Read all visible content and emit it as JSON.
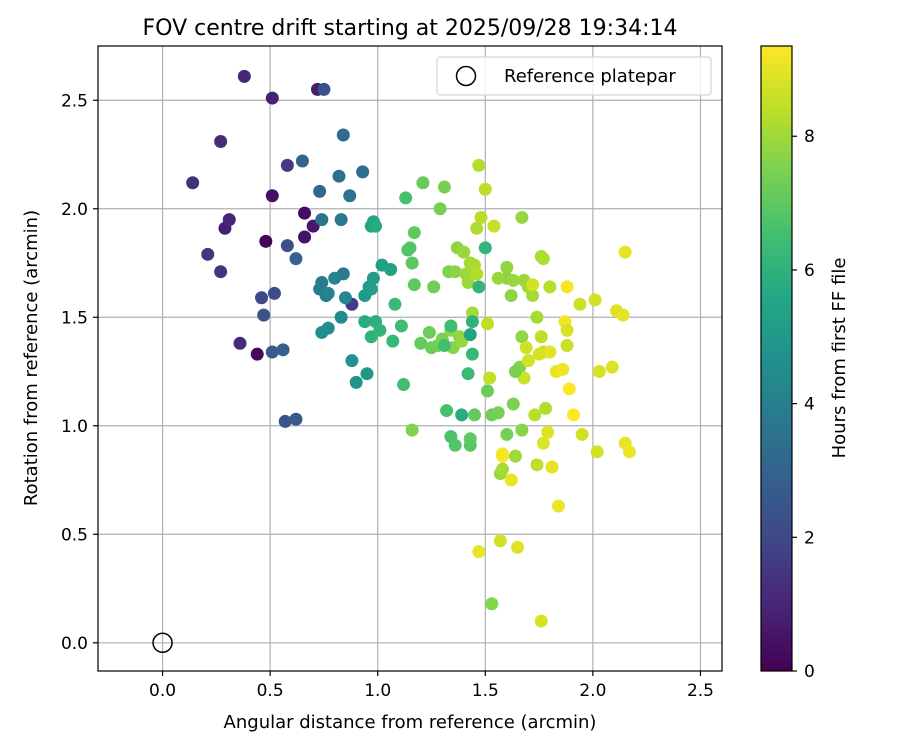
{
  "chart_data": {
    "type": "scatter",
    "title": "FOV centre drift starting at 2025/09/28 19:34:14",
    "xlabel": "Angular distance from reference (arcmin)",
    "ylabel": "Rotation from reference (arcmin)",
    "xlim": [
      -0.3,
      2.6
    ],
    "ylim": [
      -0.13,
      2.75
    ],
    "xticks": [
      0.0,
      0.5,
      1.0,
      1.5,
      2.0,
      2.5
    ],
    "xtick_labels": [
      "0.0",
      "0.5",
      "1.0",
      "1.5",
      "2.0",
      "2.5"
    ],
    "yticks": [
      0.0,
      0.5,
      1.0,
      1.5,
      2.0,
      2.5
    ],
    "ytick_labels": [
      "0.0",
      "0.5",
      "1.0",
      "1.5",
      "2.0",
      "2.5"
    ],
    "grid": true,
    "legend": {
      "position": "top-right",
      "label": "Reference platepar"
    },
    "reference_point": {
      "x": 0.0,
      "y": 0.0
    },
    "colorbar": {
      "label": "Hours from first FF file",
      "colormap": "viridis",
      "range": [
        0,
        9.35
      ],
      "ticks": [
        0,
        2,
        4,
        6,
        8
      ],
      "tick_labels": [
        "0",
        "2",
        "4",
        "6",
        "8"
      ]
    },
    "point_fields": [
      "x",
      "y",
      "hours"
    ],
    "points": [
      [
        0.48,
        1.85,
        0.05
      ],
      [
        0.44,
        1.33,
        0.2
      ],
      [
        0.66,
        1.98,
        0.3
      ],
      [
        0.51,
        2.06,
        0.4
      ],
      [
        0.66,
        1.87,
        0.5
      ],
      [
        0.7,
        1.92,
        0.6
      ],
      [
        0.72,
        2.55,
        0.7
      ],
      [
        0.29,
        1.91,
        0.8
      ],
      [
        0.51,
        2.51,
        0.9
      ],
      [
        0.31,
        1.95,
        1.0
      ],
      [
        0.38,
        2.61,
        1.05
      ],
      [
        0.36,
        1.38,
        1.15
      ],
      [
        0.27,
        2.31,
        1.2
      ],
      [
        0.14,
        2.12,
        1.3
      ],
      [
        0.27,
        1.71,
        1.4
      ],
      [
        0.21,
        1.79,
        1.5
      ],
      [
        0.58,
        2.2,
        1.6
      ],
      [
        0.88,
        1.56,
        1.7
      ],
      [
        0.46,
        1.59,
        2.0
      ],
      [
        0.52,
        1.61,
        2.1
      ],
      [
        0.58,
        1.83,
        2.2
      ],
      [
        0.75,
        2.55,
        2.3
      ],
      [
        0.47,
        1.51,
        2.4
      ],
      [
        0.57,
        1.02,
        2.5
      ],
      [
        0.62,
        1.03,
        2.6
      ],
      [
        0.51,
        1.34,
        2.7
      ],
      [
        0.56,
        1.35,
        2.8
      ],
      [
        0.62,
        1.77,
        2.9
      ],
      [
        0.65,
        2.22,
        3.0
      ],
      [
        0.73,
        2.08,
        3.1
      ],
      [
        0.84,
        2.34,
        3.2
      ],
      [
        0.93,
        2.17,
        3.3
      ],
      [
        0.82,
        2.15,
        3.4
      ],
      [
        0.87,
        2.06,
        3.5
      ],
      [
        0.74,
        1.95,
        3.6
      ],
      [
        0.83,
        1.95,
        3.7
      ],
      [
        0.84,
        1.7,
        3.8
      ],
      [
        0.74,
        1.66,
        3.85
      ],
      [
        0.73,
        1.63,
        3.9
      ],
      [
        0.76,
        1.6,
        4.0
      ],
      [
        0.77,
        1.61,
        4.1
      ],
      [
        0.8,
        1.68,
        4.2
      ],
      [
        0.85,
        1.59,
        4.3
      ],
      [
        0.83,
        1.5,
        4.4
      ],
      [
        0.77,
        1.45,
        4.5
      ],
      [
        0.74,
        1.43,
        4.6
      ],
      [
        0.88,
        1.3,
        4.7
      ],
      [
        0.9,
        1.2,
        4.8
      ],
      [
        0.95,
        1.24,
        4.9
      ],
      [
        0.94,
        1.6,
        5.0
      ],
      [
        0.96,
        1.64,
        5.1
      ],
      [
        0.97,
        1.63,
        5.15
      ],
      [
        0.98,
        1.68,
        5.2
      ],
      [
        1.02,
        1.74,
        5.3
      ],
      [
        1.06,
        1.72,
        5.4
      ],
      [
        0.97,
        1.92,
        5.5
      ],
      [
        0.98,
        1.94,
        5.6
      ],
      [
        0.99,
        1.92,
        5.7
      ],
      [
        0.94,
        1.48,
        5.8
      ],
      [
        0.99,
        1.48,
        5.9
      ],
      [
        0.97,
        1.41,
        6.0
      ],
      [
        1.01,
        1.44,
        6.1
      ],
      [
        1.07,
        1.39,
        6.2
      ],
      [
        1.08,
        1.56,
        6.3
      ],
      [
        1.11,
        1.46,
        6.4
      ],
      [
        1.12,
        1.19,
        6.5
      ],
      [
        1.13,
        2.05,
        6.6
      ],
      [
        1.14,
        1.81,
        6.7
      ],
      [
        1.15,
        1.82,
        6.8
      ],
      [
        1.16,
        1.75,
        6.9
      ],
      [
        1.17,
        1.65,
        7.0
      ],
      [
        1.17,
        1.89,
        7.05
      ],
      [
        1.2,
        1.38,
        7.1
      ],
      [
        1.21,
        2.12,
        7.15
      ],
      [
        1.24,
        1.43,
        7.2
      ],
      [
        1.25,
        1.36,
        7.25
      ],
      [
        1.26,
        1.64,
        7.3
      ],
      [
        1.28,
        1.37,
        7.35
      ],
      [
        1.29,
        2.0,
        7.4
      ],
      [
        1.31,
        2.1,
        7.45
      ],
      [
        1.3,
        1.4,
        7.5
      ],
      [
        1.33,
        1.71,
        7.55
      ],
      [
        1.34,
        1.44,
        7.6
      ],
      [
        1.35,
        1.36,
        7.65
      ],
      [
        1.36,
        1.71,
        7.7
      ],
      [
        1.37,
        1.82,
        7.75
      ],
      [
        1.38,
        1.41,
        7.8
      ],
      [
        1.39,
        1.39,
        7.85
      ],
      [
        1.4,
        1.8,
        7.9
      ],
      [
        1.41,
        1.7,
        7.95
      ],
      [
        1.42,
        1.66,
        8.0
      ],
      [
        1.43,
        1.75,
        8.05
      ],
      [
        1.44,
        1.52,
        8.1
      ],
      [
        1.45,
        1.74,
        8.15
      ],
      [
        1.46,
        1.91,
        8.2
      ],
      [
        1.46,
        1.7,
        8.25
      ],
      [
        1.47,
        2.2,
        8.3
      ],
      [
        1.48,
        1.96,
        8.35
      ],
      [
        1.5,
        2.09,
        8.4
      ],
      [
        1.51,
        1.47,
        8.45
      ],
      [
        1.52,
        1.22,
        8.5
      ],
      [
        1.54,
        1.92,
        8.55
      ],
      [
        1.44,
        1.48,
        6.0
      ],
      [
        1.47,
        1.64,
        6.1
      ],
      [
        1.44,
        1.33,
        6.2
      ],
      [
        1.42,
        1.24,
        6.3
      ],
      [
        1.34,
        1.46,
        6.4
      ],
      [
        1.31,
        1.37,
        6.5
      ],
      [
        1.43,
        1.42,
        5.4
      ],
      [
        1.39,
        1.05,
        5.8
      ],
      [
        1.32,
        1.07,
        6.6
      ],
      [
        1.34,
        0.95,
        6.7
      ],
      [
        1.36,
        0.91,
        6.8
      ],
      [
        1.43,
        0.91,
        6.9
      ],
      [
        1.43,
        0.94,
        7.0
      ],
      [
        1.45,
        1.05,
        7.1
      ],
      [
        1.51,
        1.16,
        7.2
      ],
      [
        1.53,
        1.05,
        7.3
      ],
      [
        1.56,
        1.06,
        7.4
      ],
      [
        1.63,
        1.1,
        7.5
      ],
      [
        1.16,
        0.98,
        7.55
      ],
      [
        1.66,
        1.27,
        7.6
      ],
      [
        1.67,
        0.98,
        7.65
      ],
      [
        1.6,
        1.68,
        7.7
      ],
      [
        1.62,
        1.6,
        7.75
      ],
      [
        1.67,
        1.41,
        7.8
      ],
      [
        1.67,
        1.96,
        7.85
      ],
      [
        1.63,
        1.67,
        7.9
      ],
      [
        1.68,
        1.67,
        7.95
      ],
      [
        1.7,
        1.64,
        8.0
      ],
      [
        1.72,
        1.6,
        8.05
      ],
      [
        1.74,
        1.5,
        8.1
      ],
      [
        1.76,
        1.78,
        8.15
      ],
      [
        1.77,
        1.77,
        8.2
      ],
      [
        1.78,
        1.08,
        8.25
      ],
      [
        1.8,
        1.64,
        8.3
      ],
      [
        1.73,
        1.05,
        8.35
      ],
      [
        1.74,
        0.82,
        8.4
      ],
      [
        1.76,
        1.41,
        8.45
      ],
      [
        1.77,
        1.34,
        8.5
      ],
      [
        1.57,
        0.78,
        7.9
      ],
      [
        1.58,
        0.8,
        8.1
      ],
      [
        1.64,
        0.86,
        8.0
      ],
      [
        1.68,
        1.22,
        8.6
      ],
      [
        1.69,
        1.36,
        8.65
      ],
      [
        1.7,
        1.3,
        8.7
      ],
      [
        1.72,
        1.65,
        8.75
      ],
      [
        1.75,
        1.33,
        8.8
      ],
      [
        1.77,
        0.92,
        8.85
      ],
      [
        1.79,
        0.97,
        8.9
      ],
      [
        1.8,
        1.34,
        8.95
      ],
      [
        1.81,
        0.81,
        9.0
      ],
      [
        1.83,
        1.25,
        9.05
      ],
      [
        1.84,
        0.63,
        9.1
      ],
      [
        1.86,
        1.26,
        9.15
      ],
      [
        1.87,
        1.48,
        9.2
      ],
      [
        1.88,
        1.64,
        9.25
      ],
      [
        1.89,
        1.17,
        9.3
      ],
      [
        1.91,
        1.05,
        9.35
      ],
      [
        1.94,
        1.56,
        8.6
      ],
      [
        1.95,
        0.96,
        8.65
      ],
      [
        2.01,
        1.58,
        8.7
      ],
      [
        2.02,
        0.88,
        8.75
      ],
      [
        2.03,
        1.25,
        8.8
      ],
      [
        2.09,
        1.27,
        8.85
      ],
      [
        2.11,
        1.53,
        8.9
      ],
      [
        2.14,
        1.51,
        8.95
      ],
      [
        2.15,
        1.8,
        9.0
      ],
      [
        2.15,
        0.92,
        9.05
      ],
      [
        2.17,
        0.88,
        9.1
      ],
      [
        1.53,
        0.18,
        7.6
      ],
      [
        1.47,
        0.42,
        9.0
      ],
      [
        1.57,
        0.47,
        8.7
      ],
      [
        1.65,
        0.44,
        8.9
      ],
      [
        1.76,
        0.1,
        8.8
      ],
      [
        1.58,
        0.86,
        9.3
      ],
      [
        1.58,
        0.87,
        9.2
      ],
      [
        1.62,
        0.75,
        9.1
      ],
      [
        1.64,
        1.25,
        7.5
      ],
      [
        1.6,
        0.96,
        7.4
      ],
      [
        1.88,
        1.44,
        8.8
      ],
      [
        1.88,
        1.37,
        8.6
      ],
      [
        1.5,
        1.82,
        6.1
      ],
      [
        1.56,
        1.68,
        7.9
      ],
      [
        1.6,
        1.73,
        7.8
      ]
    ]
  }
}
